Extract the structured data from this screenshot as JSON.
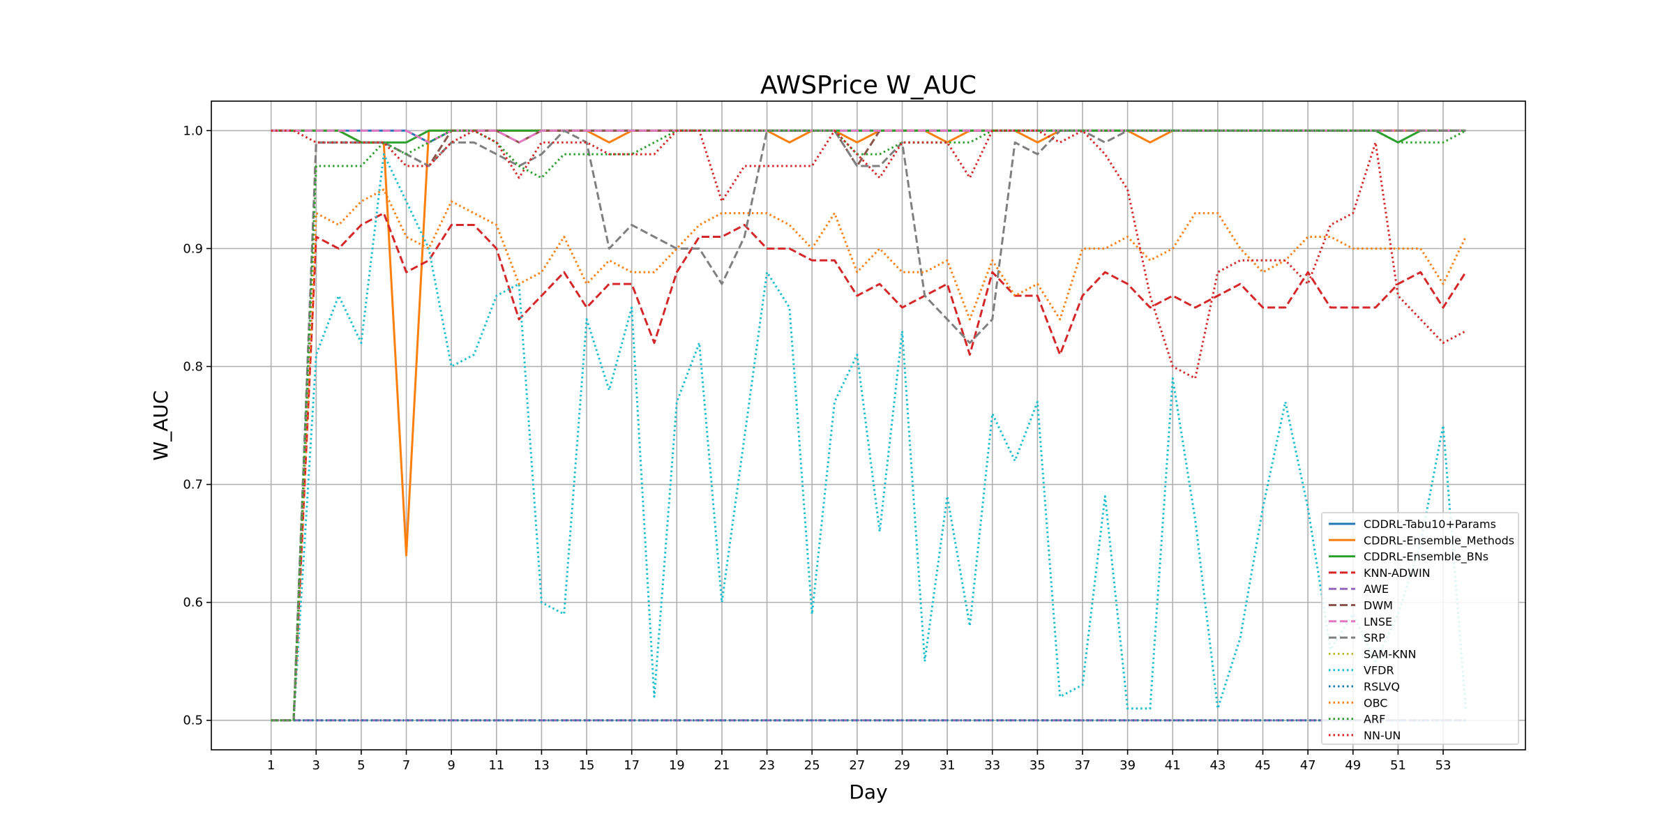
{
  "chart_data": {
    "type": "line",
    "title": "AWSPrice W_AUC",
    "xlabel": "Day",
    "ylabel": "W_AUC",
    "xlim": [
      -1.65,
      56.65
    ],
    "ylim": [
      0.475,
      1.025
    ],
    "xticks": [
      1,
      3,
      5,
      7,
      9,
      11,
      13,
      15,
      17,
      19,
      21,
      23,
      25,
      27,
      29,
      31,
      33,
      35,
      37,
      39,
      41,
      43,
      45,
      47,
      49,
      51,
      53
    ],
    "yticks": [
      0.5,
      0.6,
      0.7,
      0.8,
      0.9,
      1.0
    ],
    "ytick_labels": [
      "0.5",
      "0.6",
      "0.7",
      "0.8",
      "0.9",
      "1.0"
    ],
    "grid": true,
    "legend_position": "lower-right",
    "x": [
      1,
      2,
      3,
      4,
      5,
      6,
      7,
      8,
      9,
      10,
      11,
      12,
      13,
      14,
      15,
      16,
      17,
      18,
      19,
      20,
      21,
      22,
      23,
      24,
      25,
      26,
      27,
      28,
      29,
      30,
      31,
      32,
      33,
      34,
      35,
      36,
      37,
      38,
      39,
      40,
      41,
      42,
      43,
      44,
      45,
      46,
      47,
      48,
      49,
      50,
      51,
      52,
      53,
      54
    ],
    "series": [
      {
        "name": "CDDRL-Tabu10+Params",
        "color": "#1f77b4",
        "style": "solid",
        "values": [
          1,
          1,
          1,
          1,
          1,
          1,
          1,
          0.99,
          1,
          1,
          1,
          1,
          1,
          1,
          1,
          1,
          1,
          1,
          1,
          1,
          1,
          1,
          1,
          1,
          1,
          1,
          1,
          1,
          1,
          1,
          1,
          1,
          1,
          1,
          1,
          1,
          1,
          1,
          1,
          1,
          1,
          1,
          1,
          1,
          1,
          1,
          1,
          1,
          1,
          1,
          1,
          1,
          1,
          1
        ]
      },
      {
        "name": "CDDRL-Ensemble_Methods",
        "color": "#ff7f0e",
        "style": "solid",
        "values": [
          1,
          1,
          1,
          1,
          0.99,
          0.99,
          0.64,
          1,
          1,
          1,
          1,
          1,
          1,
          1,
          1,
          0.99,
          1,
          1,
          1,
          1,
          1,
          1,
          1,
          0.99,
          1,
          1,
          0.99,
          1,
          1,
          1,
          0.99,
          1,
          1,
          1,
          0.99,
          1,
          1,
          1,
          1,
          0.99,
          1,
          1,
          1,
          1,
          1,
          1,
          1,
          1,
          1,
          1,
          1,
          1,
          1,
          1
        ]
      },
      {
        "name": "CDDRL-Ensemble_BNs",
        "color": "#2ca02c",
        "style": "solid",
        "values": [
          1,
          1,
          1,
          1,
          0.99,
          0.99,
          0.99,
          1,
          1,
          1,
          1,
          1,
          1,
          1,
          1,
          1,
          1,
          1,
          1,
          1,
          1,
          1,
          1,
          1,
          1,
          1,
          1,
          1,
          1,
          1,
          1,
          1,
          1,
          1,
          1,
          1,
          1,
          1,
          1,
          1,
          1,
          1,
          1,
          1,
          1,
          1,
          1,
          1,
          1,
          1,
          0.99,
          1,
          1,
          1
        ]
      },
      {
        "name": "KNN-ADWIN",
        "color": "#d62728",
        "style": "dashed",
        "values": [
          0.5,
          0.5,
          0.91,
          0.9,
          0.92,
          0.93,
          0.88,
          0.89,
          0.92,
          0.92,
          0.9,
          0.84,
          0.86,
          0.88,
          0.85,
          0.87,
          0.87,
          0.82,
          0.88,
          0.91,
          0.91,
          0.92,
          0.9,
          0.9,
          0.89,
          0.89,
          0.86,
          0.87,
          0.85,
          0.86,
          0.87,
          0.81,
          0.88,
          0.86,
          0.86,
          0.81,
          0.86,
          0.88,
          0.87,
          0.85,
          0.86,
          0.85,
          0.86,
          0.87,
          0.85,
          0.85,
          0.88,
          0.85,
          0.85,
          0.85,
          0.87,
          0.88,
          0.85,
          0.88
        ]
      },
      {
        "name": "AWE",
        "color": "#9467bd",
        "style": "dashed",
        "values": [
          0.5,
          0.5,
          0.5,
          0.5,
          0.5,
          0.5,
          0.5,
          0.5,
          0.5,
          0.5,
          0.5,
          0.5,
          0.5,
          0.5,
          0.5,
          0.5,
          0.5,
          0.5,
          0.5,
          0.5,
          0.5,
          0.5,
          0.5,
          0.5,
          0.5,
          0.5,
          0.5,
          0.5,
          0.5,
          0.5,
          0.5,
          0.5,
          0.5,
          0.5,
          0.5,
          0.5,
          0.5,
          0.5,
          0.5,
          0.5,
          0.5,
          0.5,
          0.5,
          0.5,
          0.5,
          0.5,
          0.5,
          0.5,
          0.5,
          0.5,
          0.5,
          0.5,
          0.5,
          0.5
        ]
      },
      {
        "name": "DWM",
        "color": "#8c564b",
        "style": "dashed",
        "values": [
          0.5,
          0.5,
          0.99,
          0.99,
          0.99,
          0.99,
          0.98,
          0.97,
          1,
          1,
          1,
          0.99,
          1,
          1,
          1,
          1,
          1,
          1,
          1,
          1,
          1,
          1,
          1,
          1,
          1,
          1,
          0.97,
          1,
          1,
          1,
          1,
          1,
          1,
          1,
          1,
          1,
          1,
          1,
          1,
          1,
          1,
          1,
          1,
          1,
          1,
          1,
          1,
          1,
          1,
          1,
          1,
          1,
          1,
          1
        ]
      },
      {
        "name": "LNSE",
        "color": "#e377c2",
        "style": "dashed",
        "values": [
          1,
          1,
          1,
          1,
          1,
          1,
          1,
          0.99,
          1,
          1,
          1,
          0.99,
          1,
          1,
          1,
          1,
          1,
          1,
          1,
          1,
          1,
          1,
          1,
          1,
          1,
          1,
          1,
          1,
          1,
          1,
          1,
          1,
          1,
          1,
          1,
          1,
          1,
          1,
          1,
          1,
          1,
          1,
          1,
          1,
          1,
          1,
          1,
          1,
          1,
          1,
          1,
          1,
          1,
          1
        ]
      },
      {
        "name": "SRP",
        "color": "#7f7f7f",
        "style": "dashed",
        "values": [
          0.5,
          0.5,
          0.99,
          0.99,
          0.99,
          0.99,
          0.98,
          0.97,
          0.99,
          0.99,
          0.98,
          0.97,
          0.98,
          1,
          0.99,
          0.9,
          0.92,
          0.91,
          0.9,
          0.9,
          0.87,
          0.91,
          1,
          1,
          1,
          1,
          0.97,
          0.97,
          0.99,
          0.86,
          0.84,
          0.82,
          0.84,
          0.99,
          0.98,
          1,
          1,
          0.99,
          1,
          1,
          1,
          1,
          1,
          1,
          1,
          1,
          1,
          1,
          1,
          1,
          1,
          1,
          1,
          1
        ]
      },
      {
        "name": "SAM-KNN",
        "color": "#bcbd22",
        "style": "dotted",
        "values": [
          0.5,
          0.5,
          0.5,
          0.5,
          0.5,
          0.5,
          0.5,
          0.5,
          0.5,
          0.5,
          0.5,
          0.5,
          0.5,
          0.5,
          0.5,
          0.5,
          0.5,
          0.5,
          0.5,
          0.5,
          0.5,
          0.5,
          0.5,
          0.5,
          0.5,
          0.5,
          0.5,
          0.5,
          0.5,
          0.5,
          0.5,
          0.5,
          0.5,
          0.5,
          0.5,
          0.5,
          0.5,
          0.5,
          0.5,
          0.5,
          0.5,
          0.5,
          0.5,
          0.5,
          0.5,
          0.5,
          0.5,
          0.5,
          0.5,
          0.5,
          0.5,
          0.5,
          0.5,
          0.5
        ]
      },
      {
        "name": "VFDR",
        "color": "#17becf",
        "style": "dotted",
        "values": [
          0.5,
          0.5,
          0.81,
          0.86,
          0.82,
          0.98,
          0.94,
          0.9,
          0.8,
          0.81,
          0.86,
          0.87,
          0.6,
          0.59,
          0.84,
          0.78,
          0.85,
          0.52,
          0.77,
          0.82,
          0.6,
          0.74,
          0.88,
          0.85,
          0.59,
          0.77,
          0.81,
          0.66,
          0.83,
          0.55,
          0.69,
          0.58,
          0.76,
          0.72,
          0.77,
          0.52,
          0.53,
          0.69,
          0.51,
          0.51,
          0.79,
          0.67,
          0.51,
          0.57,
          0.68,
          0.77,
          0.68,
          0.56,
          0.59,
          0.55,
          0.59,
          0.65,
          0.75,
          0.51
        ]
      },
      {
        "name": "RSLVQ",
        "color": "#1f77b4",
        "style": "dotted",
        "values": [
          0.5,
          0.5,
          0.5,
          0.5,
          0.5,
          0.5,
          0.5,
          0.5,
          0.5,
          0.5,
          0.5,
          0.5,
          0.5,
          0.5,
          0.5,
          0.5,
          0.5,
          0.5,
          0.5,
          0.5,
          0.5,
          0.5,
          0.5,
          0.5,
          0.5,
          0.5,
          0.5,
          0.5,
          0.5,
          0.5,
          0.5,
          0.5,
          0.5,
          0.5,
          0.5,
          0.5,
          0.5,
          0.5,
          0.5,
          0.5,
          0.5,
          0.5,
          0.5,
          0.5,
          0.5,
          0.5,
          0.5,
          0.5,
          0.5,
          0.5,
          0.5,
          0.5,
          0.5,
          0.5
        ]
      },
      {
        "name": "OBC",
        "color": "#ff7f0e",
        "style": "dotted",
        "values": [
          0.5,
          0.5,
          0.93,
          0.92,
          0.94,
          0.95,
          0.91,
          0.9,
          0.94,
          0.93,
          0.92,
          0.87,
          0.88,
          0.91,
          0.87,
          0.89,
          0.88,
          0.88,
          0.9,
          0.92,
          0.93,
          0.93,
          0.93,
          0.92,
          0.9,
          0.93,
          0.88,
          0.9,
          0.88,
          0.88,
          0.89,
          0.84,
          0.89,
          0.86,
          0.87,
          0.84,
          0.9,
          0.9,
          0.91,
          0.89,
          0.9,
          0.93,
          0.93,
          0.9,
          0.88,
          0.89,
          0.91,
          0.91,
          0.9,
          0.9,
          0.9,
          0.9,
          0.87,
          0.91
        ]
      },
      {
        "name": "ARF",
        "color": "#2ca02c",
        "style": "dotted",
        "values": [
          0.5,
          0.5,
          0.97,
          0.97,
          0.97,
          0.99,
          0.98,
          0.99,
          1,
          1,
          0.99,
          0.97,
          0.96,
          0.98,
          0.98,
          0.98,
          0.98,
          0.99,
          1,
          1,
          1,
          1,
          1,
          1,
          1,
          1,
          0.98,
          0.98,
          0.99,
          0.99,
          0.99,
          0.99,
          1,
          1,
          1,
          1,
          1,
          1,
          1,
          1,
          1,
          1,
          1,
          1,
          1,
          1,
          1,
          1,
          1,
          1,
          0.99,
          0.99,
          0.99,
          1
        ]
      },
      {
        "name": "NN-UN",
        "color": "#d62728",
        "style": "dotted",
        "values": [
          1,
          1,
          0.99,
          0.99,
          0.99,
          0.99,
          0.97,
          0.97,
          0.99,
          1,
          0.99,
          0.96,
          0.99,
          0.99,
          0.99,
          0.98,
          0.98,
          0.98,
          1,
          1,
          0.94,
          0.97,
          0.97,
          0.97,
          0.97,
          1,
          0.98,
          0.96,
          0.99,
          0.99,
          0.99,
          0.96,
          1,
          1,
          1,
          0.99,
          1,
          0.98,
          0.95,
          0.86,
          0.8,
          0.79,
          0.88,
          0.89,
          0.89,
          0.89,
          0.87,
          0.92,
          0.93,
          0.99,
          0.86,
          0.84,
          0.82,
          0.83
        ]
      }
    ]
  }
}
